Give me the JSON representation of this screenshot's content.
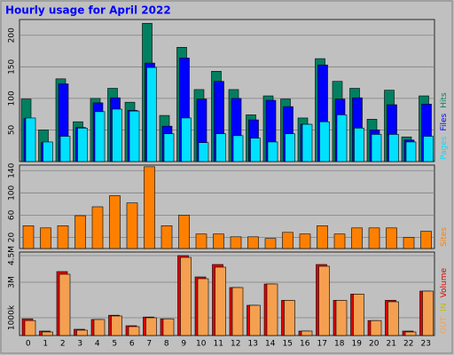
{
  "chart_data": [
    {
      "type": "bar",
      "title": "Hourly usage for April 2022",
      "ylim": [
        0,
        225
      ],
      "yticks": [
        50,
        100,
        150,
        200
      ],
      "grid": true,
      "series": [
        {
          "name": "Hits",
          "color": "#008060",
          "values": [
            99,
            50,
            131,
            63,
            100,
            116,
            94,
            219,
            73,
            181,
            114,
            143,
            114,
            74,
            104,
            99,
            69,
            163,
            127,
            116,
            67,
            113,
            39,
            104
          ]
        },
        {
          "name": "Files",
          "color": "#0000ff",
          "values": [
            68,
            30,
            123,
            54,
            93,
            101,
            81,
            156,
            56,
            164,
            99,
            127,
            100,
            66,
            97,
            87,
            59,
            153,
            99,
            101,
            50,
            90,
            34,
            91
          ]
        },
        {
          "name": "Pages",
          "color": "#00e0ff",
          "values": [
            69,
            31,
            40,
            53,
            79,
            83,
            80,
            149,
            44,
            69,
            30,
            44,
            41,
            37,
            31,
            44,
            59,
            63,
            74,
            53,
            43,
            43,
            31,
            40
          ]
        }
      ]
    },
    {
      "type": "bar",
      "ylim": [
        0,
        150
      ],
      "yticks": [
        20,
        60,
        100,
        140
      ],
      "grid": true,
      "series": [
        {
          "name": "Sites",
          "color": "#ff8000",
          "values": [
            41,
            37,
            41,
            59,
            75,
            95,
            82,
            147,
            41,
            60,
            26,
            26,
            21,
            21,
            18,
            29,
            26,
            41,
            26,
            37,
            37,
            37,
            20,
            31
          ]
        }
      ]
    },
    {
      "type": "bar",
      "categories": [
        "0",
        "1",
        "2",
        "3",
        "4",
        "5",
        "6",
        "7",
        "8",
        "9",
        "10",
        "11",
        "12",
        "13",
        "14",
        "15",
        "16",
        "17",
        "18",
        "19",
        "20",
        "21",
        "22",
        "23"
      ],
      "ylim": [
        0,
        4700000
      ],
      "yticks": [
        {
          "value": 1000000,
          "label": "1000k"
        },
        {
          "value": 3000000,
          "label": "3M"
        },
        {
          "value": 4500000,
          "label": "4.5M"
        }
      ],
      "grid": true,
      "series": [
        {
          "name": "Volume",
          "color": "#e00000",
          "values": [
            940000,
            250000,
            3600000,
            350000,
            900000,
            1140000,
            550000,
            1040000,
            940000,
            4500000,
            3300000,
            4000000,
            2700000,
            1700000,
            2900000,
            1980000,
            250000,
            4000000,
            1980000,
            2330000,
            840000,
            1980000,
            250000,
            2500000
          ]
        },
        {
          "name": "IN",
          "color": "#c0c000",
          "values": [
            null,
            null,
            null,
            null,
            null,
            null,
            null,
            null,
            null,
            null,
            null,
            null,
            null,
            null,
            null,
            null,
            null,
            null,
            null,
            null,
            null,
            null,
            null,
            null
          ]
        },
        {
          "name": "OUT",
          "color": "#f4a050",
          "values": [
            840000,
            200000,
            3450000,
            300000,
            900000,
            1100000,
            500000,
            1000000,
            940000,
            4400000,
            3200000,
            3850000,
            2700000,
            1700000,
            2900000,
            1980000,
            250000,
            3900000,
            1980000,
            2330000,
            840000,
            1900000,
            200000,
            2500000
          ]
        }
      ]
    }
  ]
}
